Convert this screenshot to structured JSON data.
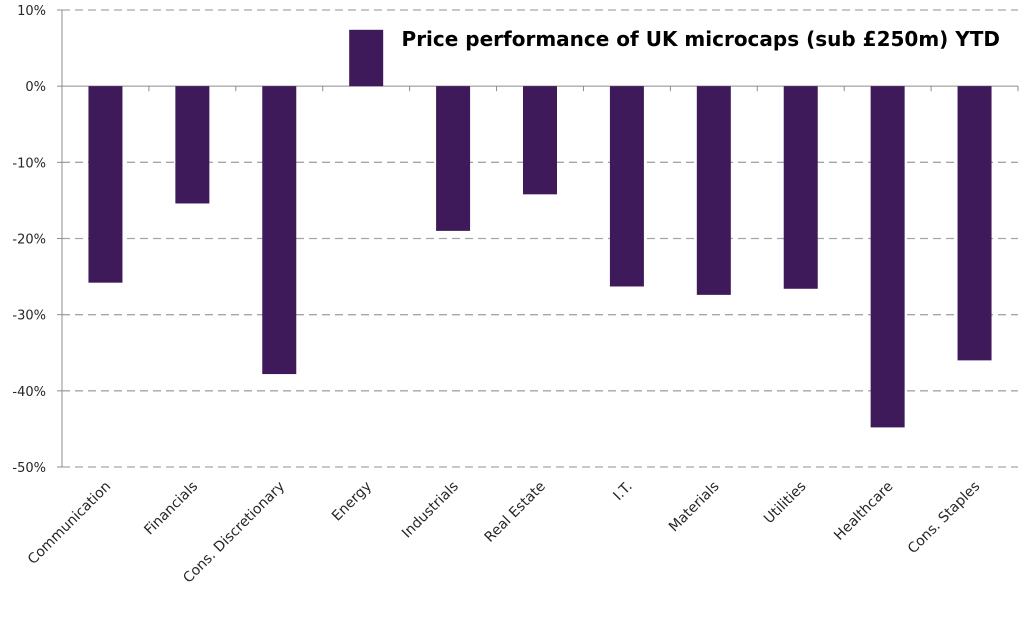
{
  "chart_data": {
    "type": "bar",
    "title": "Price performance of UK microcaps (sub £250m) YTD",
    "xlabel": "",
    "ylabel": "",
    "categories": [
      "Communication",
      "Financials",
      "Cons. Discretionary",
      "Energy",
      "Industrials",
      "Real Estate",
      "I.T.",
      "Materials",
      "Utilities",
      "Healthcare",
      "Cons. Staples"
    ],
    "series": [
      {
        "values": [
          -25.8,
          -15.4,
          -37.8,
          7.4,
          -19.0,
          -14.2,
          -26.3,
          -27.4,
          -26.6,
          -44.8,
          -36.0
        ]
      }
    ],
    "ylim": [
      -50,
      10
    ],
    "yticks": [
      10,
      0,
      -10,
      -20,
      -30,
      -40,
      -50
    ],
    "ytick_labels": [
      "10%",
      "0%",
      "-10%",
      "-20%",
      "-30%",
      "-40%",
      "-50%"
    ],
    "grid": true,
    "legend": "none",
    "bar_color": "#3f1a5a",
    "grid_color": "#a6a6a6"
  }
}
